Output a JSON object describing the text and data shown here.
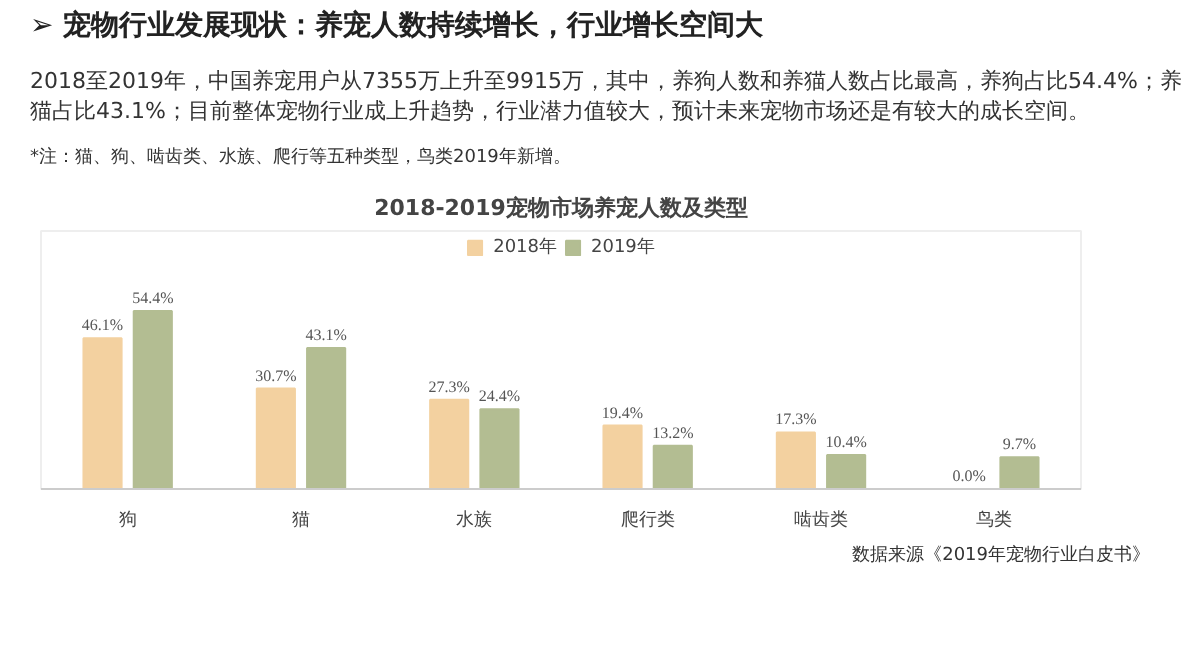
{
  "chart_data": {
    "type": "bar",
    "title": "2018-2019宠物市场养宠人数及类型",
    "annotations": [
      "➢ 宠物行业发展现状：养宠人数持续增长，行业增长空间大",
      "2018至2019年，中国养宠用户从7355万上升至9915万，其中，养狗人数和养猫人数占比最高，养狗占比54.4%；养猫占比43.1%；目前整体宠物行业成上升趋势，行业潜力值较大，预计未来宠物市场还是有较大的成长空间。",
      "*注：猫、狗、啮齿类、水族、爬行等五种类型，鸟类2019年新增。",
      "数据来源《2019年宠物行业白皮书》"
    ],
    "categories": [
      "狗",
      "猫",
      "水族",
      "爬行类",
      "啮齿类",
      "鸟类"
    ],
    "series": [
      {
        "name": "2018年",
        "color": "#f3d1a0",
        "values": [
          46.1,
          30.7,
          27.3,
          19.4,
          17.3,
          0.0
        ],
        "value_labels": [
          "46.1%",
          "30.7%",
          "27.3%",
          "19.4%",
          "17.3%",
          "0.0%"
        ]
      },
      {
        "name": "2019年",
        "color": "#b3bd92",
        "values": [
          54.4,
          43.1,
          24.4,
          13.2,
          10.4,
          9.7
        ],
        "value_labels": [
          "54.4%",
          "43.1%",
          "24.4%",
          "13.2%",
          "10.4%",
          "9.7%"
        ]
      }
    ],
    "legend": "top",
    "tick_labels": "x",
    "grid": false
  }
}
